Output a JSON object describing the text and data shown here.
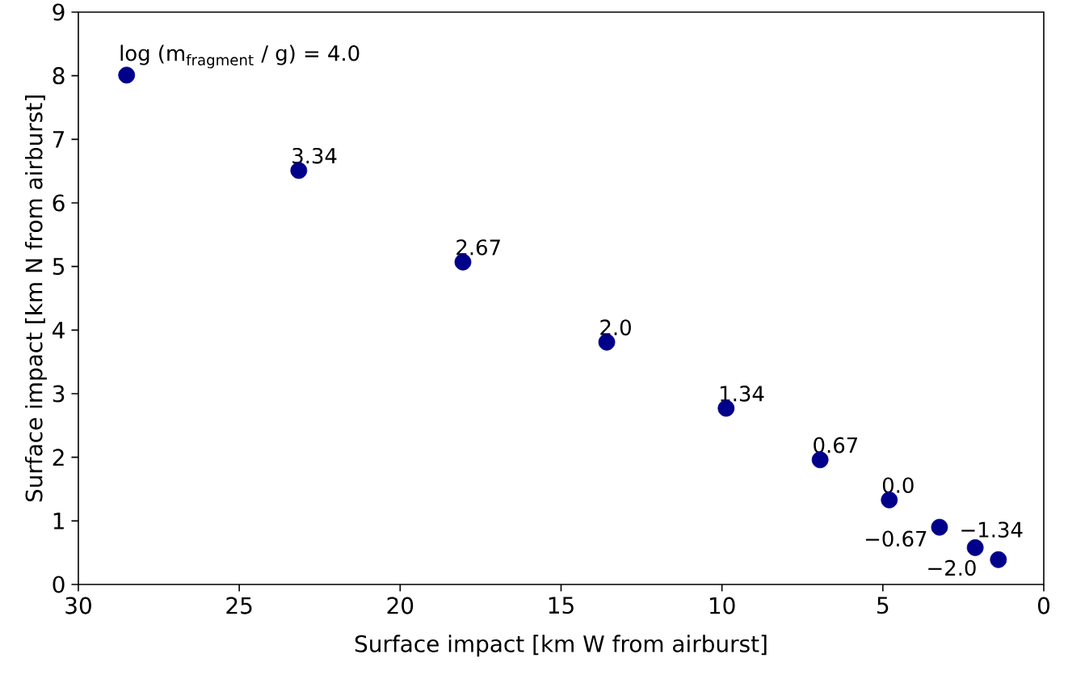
{
  "chart_data": {
    "type": "scatter",
    "xlabel": "Surface impact [km W from airburst]",
    "ylabel": "Surface impact [km N from airburst]",
    "x": [
      28.5,
      23.15,
      18.05,
      13.58,
      9.87,
      6.95,
      4.8,
      3.24,
      2.13,
      1.41
    ],
    "series": [
      {
        "color": "#00008b",
        "values": [
          8.01,
          6.51,
          5.07,
          3.81,
          2.77,
          1.96,
          1.33,
          0.9,
          0.58,
          0.39
        ]
      }
    ],
    "grid": false,
    "xlim": [
      30,
      0
    ],
    "ylim": [
      0,
      9
    ],
    "xticks": [
      30,
      25,
      20,
      15,
      10,
      5,
      0
    ],
    "yticks": [
      0,
      1,
      2,
      3,
      4,
      5,
      6,
      7,
      8,
      9
    ],
    "annotations": [
      {
        "text": "log (m$_{fragment}$ / g) = 4.0",
        "x": 28.5,
        "y": 8.01
      },
      {
        "text": "3.34",
        "x": 23.15,
        "y": 6.51
      },
      {
        "text": "2.67",
        "x": 18.05,
        "y": 5.07
      },
      {
        "text": "2.0",
        "x": 13.58,
        "y": 3.81
      },
      {
        "text": "1.34",
        "x": 9.87,
        "y": 2.77
      },
      {
        "text": "0.67",
        "x": 6.95,
        "y": 1.96
      },
      {
        "text": "0.0",
        "x": 4.8,
        "y": 1.33
      },
      {
        "text": "−0.67",
        "x": 3.24,
        "y": 0.9
      },
      {
        "text": "−1.34",
        "x": 2.13,
        "y": 0.58
      },
      {
        "text": "−2.0",
        "x": 1.41,
        "y": 0.39
      }
    ]
  }
}
